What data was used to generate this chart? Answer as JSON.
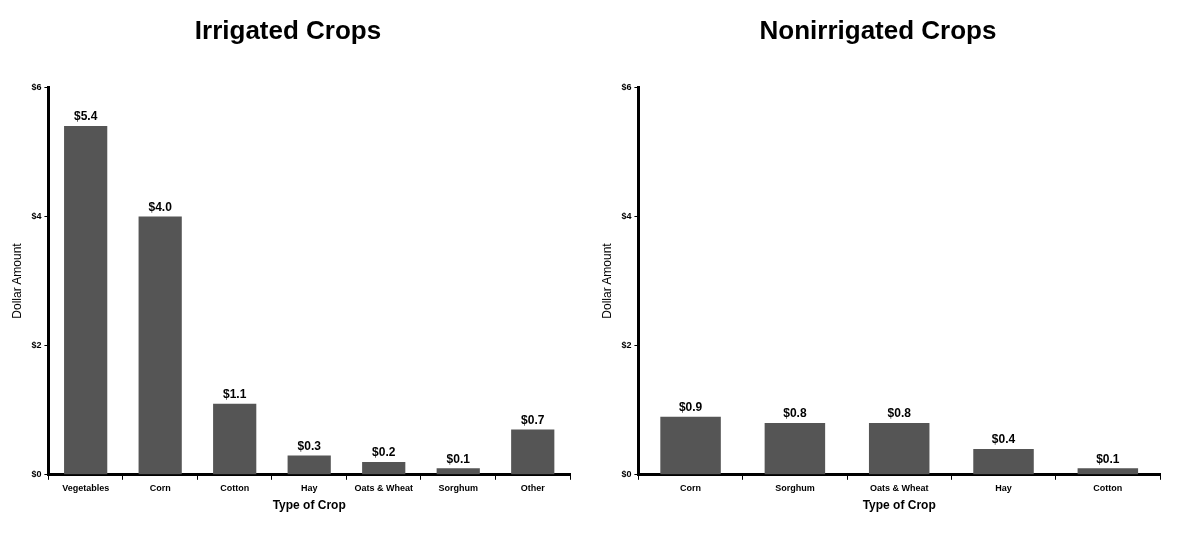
{
  "chart_data": [
    {
      "type": "bar",
      "title": "Irrigated Crops",
      "xlabel": "Type of Crop",
      "ylabel": "Dollar Amount",
      "categories": [
        "Vegetables",
        "Corn",
        "Cotton",
        "Hay",
        "Oats & Wheat",
        "Sorghum",
        "Other"
      ],
      "values": [
        5.4,
        4.0,
        1.1,
        0.3,
        0.2,
        0.1,
        0.7
      ],
      "value_labels": [
        "$5.4",
        "$4.0",
        "$1.1",
        "$0.3",
        "$0.2",
        "$0.1",
        "$0.7"
      ],
      "color": "#555555",
      "ylim": [
        0,
        6
      ],
      "yticks": [
        {
          "value": 0,
          "label": "$0"
        },
        {
          "value": 2,
          "label": "$2"
        },
        {
          "value": 4,
          "label": "$4"
        },
        {
          "value": 6,
          "label": "$6"
        }
      ],
      "grid": false,
      "legend": false
    },
    {
      "type": "bar",
      "title": "Nonirrigated Crops",
      "xlabel": "Type of Crop",
      "ylabel": "Dollar Amount",
      "categories": [
        "Corn",
        "Sorghum",
        "Oats & Wheat",
        "Hay",
        "Cotton"
      ],
      "values": [
        0.9,
        0.8,
        0.8,
        0.4,
        0.1
      ],
      "value_labels": [
        "$0.9",
        "$0.8",
        "$0.8",
        "$0.4",
        "$0.1"
      ],
      "color": "#555555",
      "ylim": [
        0,
        6
      ],
      "yticks": [
        {
          "value": 0,
          "label": "$0"
        },
        {
          "value": 2,
          "label": "$2"
        },
        {
          "value": 4,
          "label": "$4"
        },
        {
          "value": 6,
          "label": "$6"
        }
      ],
      "grid": false,
      "legend": false
    }
  ]
}
